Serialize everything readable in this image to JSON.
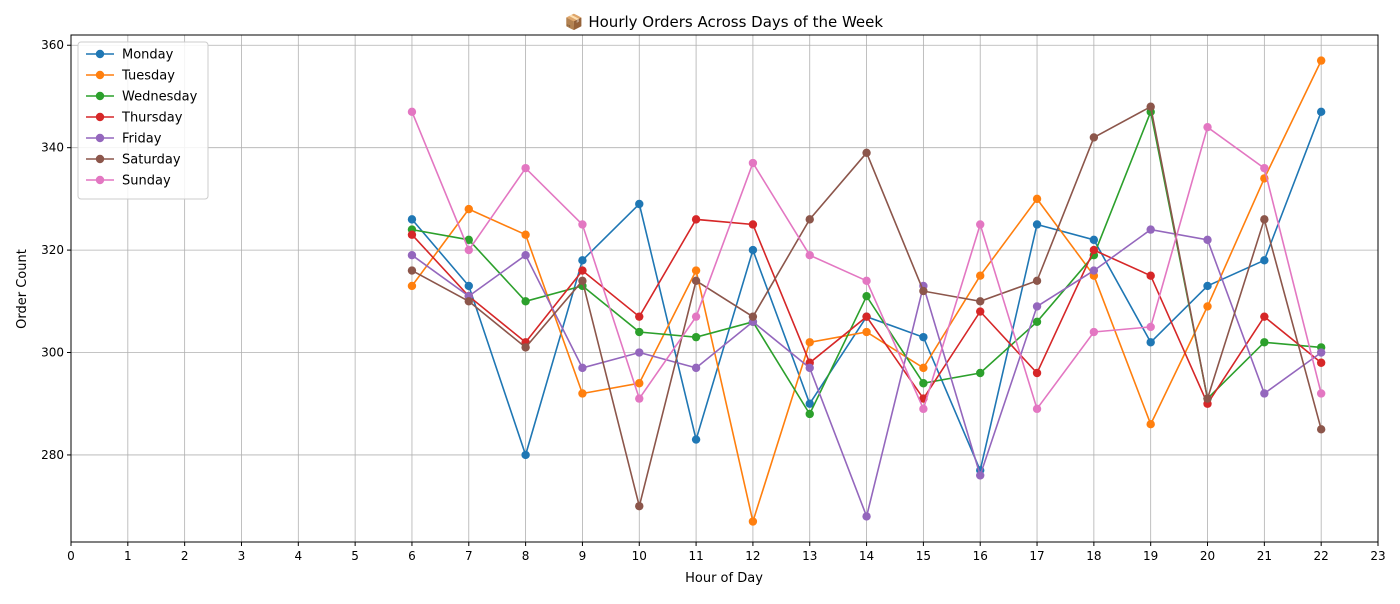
{
  "chart_data": {
    "type": "line",
    "title": "📦 Hourly Orders Across Days of the Week",
    "xlabel": "Hour of Day",
    "ylabel": "Order Count",
    "xlim": [
      0,
      23
    ],
    "ylim": [
      263,
      362
    ],
    "x_ticks": [
      0,
      1,
      2,
      3,
      4,
      5,
      6,
      7,
      8,
      9,
      10,
      11,
      12,
      13,
      14,
      15,
      16,
      17,
      18,
      19,
      20,
      21,
      22,
      23
    ],
    "y_ticks": [
      280,
      300,
      320,
      340,
      360
    ],
    "grid": true,
    "legend_position": "upper-left",
    "x": [
      6,
      7,
      8,
      9,
      10,
      11,
      12,
      13,
      14,
      15,
      16,
      17,
      18,
      19,
      20,
      21,
      22
    ],
    "series": [
      {
        "name": "Monday",
        "color": "#1f77b4",
        "values": [
          326,
          313,
          280,
          318,
          329,
          283,
          320,
          290,
          307,
          303,
          277,
          325,
          322,
          302,
          313,
          318,
          347
        ]
      },
      {
        "name": "Tuesday",
        "color": "#ff7f0e",
        "values": [
          313,
          328,
          323,
          292,
          294,
          316,
          267,
          302,
          304,
          297,
          315,
          330,
          315,
          286,
          309,
          334,
          357
        ]
      },
      {
        "name": "Wednesday",
        "color": "#2ca02c",
        "values": [
          324,
          322,
          310,
          313,
          304,
          303,
          306,
          288,
          311,
          294,
          296,
          306,
          319,
          347,
          291,
          302,
          301
        ]
      },
      {
        "name": "Thursday",
        "color": "#d62728",
        "values": [
          323,
          311,
          302,
          316,
          307,
          326,
          325,
          298,
          307,
          291,
          308,
          296,
          320,
          315,
          290,
          307,
          298
        ]
      },
      {
        "name": "Friday",
        "color": "#9467bd",
        "values": [
          319,
          311,
          319,
          297,
          300,
          297,
          306,
          297,
          268,
          313,
          276,
          309,
          316,
          324,
          322,
          292,
          300
        ]
      },
      {
        "name": "Saturday",
        "color": "#8c564b",
        "values": [
          316,
          310,
          301,
          314,
          270,
          314,
          307,
          326,
          339,
          312,
          310,
          314,
          342,
          348,
          291,
          326,
          285
        ]
      },
      {
        "name": "Sunday",
        "color": "#e377c2",
        "values": [
          347,
          320,
          336,
          325,
          291,
          307,
          337,
          319,
          314,
          289,
          325,
          289,
          304,
          305,
          344,
          336,
          292
        ]
      }
    ]
  }
}
